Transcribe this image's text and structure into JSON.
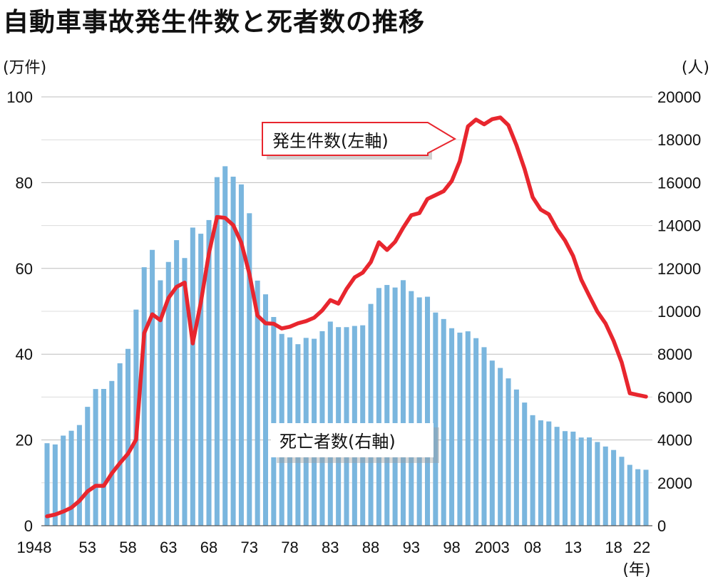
{
  "title": "自動車事故発生件数と死者数の推移",
  "chart_data": {
    "type": "bar+line",
    "title": "自動車事故発生件数と死者数の推移",
    "x_unit": "(年)",
    "x_tick_labels": [
      "1948",
      "53",
      "58",
      "63",
      "68",
      "73",
      "78",
      "83",
      "88",
      "93",
      "98",
      "2003",
      "08",
      "13",
      "18",
      "22"
    ],
    "x_years": [
      1948,
      1949,
      1950,
      1951,
      1952,
      1953,
      1954,
      1955,
      1956,
      1957,
      1958,
      1959,
      1960,
      1961,
      1962,
      1963,
      1964,
      1965,
      1966,
      1967,
      1968,
      1969,
      1970,
      1971,
      1972,
      1973,
      1974,
      1975,
      1976,
      1977,
      1978,
      1979,
      1980,
      1981,
      1982,
      1983,
      1984,
      1985,
      1986,
      1987,
      1988,
      1989,
      1990,
      1991,
      1992,
      1993,
      1994,
      1995,
      1996,
      1997,
      1998,
      1999,
      2000,
      2001,
      2002,
      2003,
      2004,
      2005,
      2006,
      2007,
      2008,
      2009,
      2010,
      2011,
      2012,
      2013,
      2014,
      2015,
      2016,
      2017,
      2018,
      2019,
      2020,
      2021,
      2022
    ],
    "left_axis": {
      "unit": "(万件)",
      "ylim": [
        0,
        100
      ],
      "ticks": [
        0,
        20,
        40,
        60,
        80,
        100
      ]
    },
    "right_axis": {
      "unit": "(人)",
      "ylim": [
        0,
        20000
      ],
      "ticks": [
        0,
        2000,
        4000,
        6000,
        8000,
        10000,
        12000,
        14000,
        16000,
        18000,
        20000
      ]
    },
    "series": [
      {
        "name": "死亡者数(右軸)",
        "kind": "bar",
        "axis": "right",
        "color": "#7ab6de",
        "values": [
          3848,
          3790,
          4202,
          4429,
          4696,
          5544,
          6374,
          6379,
          6751,
          7575,
          8248,
          10079,
          12055,
          12865,
          11445,
          12301,
          13318,
          12484,
          13904,
          13618,
          14256,
          16257,
          16765,
          16278,
          15918,
          14574,
          11432,
          10792,
          9734,
          8945,
          8783,
          8466,
          8760,
          8719,
          9073,
          9520,
          9262,
          9261,
          9317,
          9347,
          10344,
          11086,
          11227,
          11109,
          11451,
          10942,
          10649,
          10679,
          9942,
          9640,
          9211,
          9006,
          9066,
          8747,
          8326,
          7702,
          7358,
          6871,
          6352,
          5744,
          5155,
          4914,
          4863,
          4612,
          4411,
          4388,
          4113,
          4117,
          3904,
          3694,
          3532,
          3215,
          2839,
          2636,
          2610
        ]
      },
      {
        "name": "発生件数(左軸)",
        "kind": "line",
        "axis": "left",
        "color": "#e8262e",
        "values": [
          2.2,
          2.6,
          3.3,
          4.2,
          5.8,
          8.0,
          9.3,
          9.3,
          12.2,
          14.6,
          16.8,
          20.1,
          44.9,
          49.3,
          47.9,
          53.1,
          55.7,
          56.7,
          42.5,
          52.1,
          63.5,
          72.0,
          71.8,
          70.1,
          66.0,
          58.7,
          49.0,
          47.2,
          47.1,
          46.0,
          46.4,
          47.2,
          47.7,
          48.5,
          50.2,
          52.6,
          51.8,
          55.2,
          57.9,
          59.0,
          61.5,
          66.1,
          64.3,
          66.2,
          69.5,
          72.4,
          72.9,
          76.2,
          77.1,
          78.0,
          80.4,
          85.0,
          93.1,
          94.7,
          93.6,
          94.8,
          95.2,
          93.4,
          88.7,
          83.2,
          76.6,
          73.7,
          72.6,
          69.2,
          66.5,
          62.9,
          57.4,
          53.6,
          49.9,
          47.2,
          43.1,
          38.1,
          30.9,
          30.5,
          30.1
        ]
      }
    ],
    "annotations": [
      "発生件数(左軸)",
      "死亡者数(右軸)"
    ]
  }
}
